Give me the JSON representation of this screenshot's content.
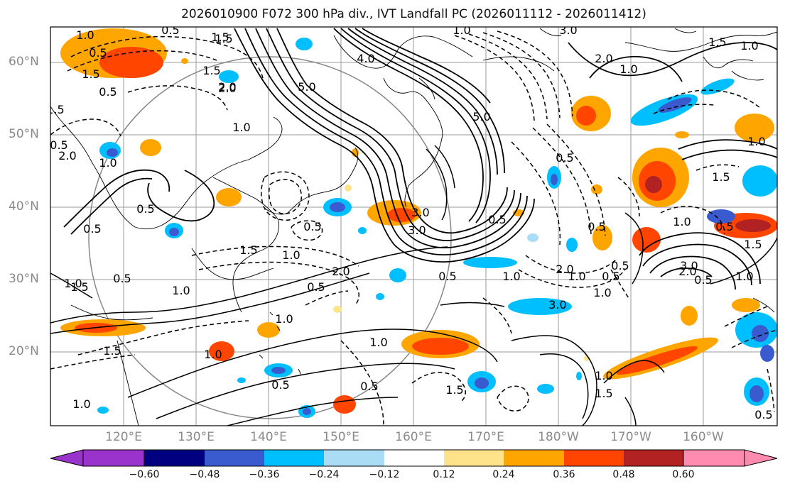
{
  "title": "2026010900 F072 300 hPa div., IVT Landfall PC (2026011112 - 2026011412)",
  "lat_labels": [
    "60°N",
    "50°N",
    "40°N",
    "30°N",
    "20°N"
  ],
  "lon_labels": [
    "120°E",
    "130°E",
    "140°E",
    "150°E",
    "160°E",
    "170°E",
    "180°W",
    "170°W",
    "160°W"
  ],
  "contour_labels": [
    "1.0",
    "0.5",
    "1.5",
    "0.5",
    "1.5",
    "2.0",
    "1.0",
    "0.5",
    "1.0",
    "1.5",
    "0.5",
    "1.5",
    "0.5",
    "0.5",
    "1.0",
    "0.5",
    "1.5",
    "2.0",
    "1.0",
    "1.5",
    "1.0",
    "0.5",
    "1.0",
    "4.0",
    "5.0",
    "3.0",
    "5.0",
    "3.0",
    "2.0",
    "1.0",
    "1.5",
    "2.0",
    "1.0",
    "0.5",
    "1.5",
    "1.0",
    "2.0",
    "0.5",
    "1.0",
    "1.5",
    "3.0",
    "0.5",
    "1.0",
    "0.5",
    "1.0",
    "1.5",
    "2.0",
    "1.0",
    "0.5",
    "0.5",
    "3.0",
    "2.0",
    "1.0",
    "0.5",
    "1.0",
    "1.0",
    "0.5",
    "1.5",
    "1.0",
    "0.5",
    "1.0",
    "1.5",
    "0.5",
    "0.5",
    "1.0",
    "1.5",
    "3.0",
    "0.5"
  ],
  "colorbar": {
    "ticks": [
      "−0.60",
      "−0.48",
      "−0.36",
      "−0.24",
      "−0.12",
      "0.12",
      "0.24",
      "0.36",
      "0.48",
      "0.60"
    ],
    "colors": [
      "#9933cc",
      "#000080",
      "#3a5bd0",
      "#00bfff",
      "#abdcf5",
      "#ffffff",
      "#ffe38a",
      "#ffa500",
      "#ff4500",
      "#b22222",
      "#ff8cb0"
    ]
  },
  "palette": {
    "neg_fill": [
      "#abdcf5",
      "#00bfff",
      "#3a5bd0"
    ],
    "pos_fill": [
      "#ffe38a",
      "#ffa500",
      "#ff4500",
      "#b22222"
    ]
  }
}
